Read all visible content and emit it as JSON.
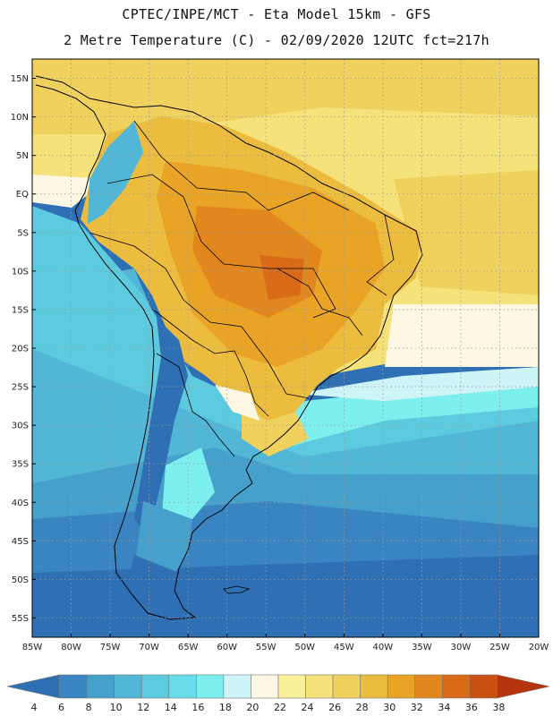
{
  "header": {
    "line1": "CPTEC/INPE/MCT -  Eta Model 15km - GFS",
    "line2": "2 Metre Temperature (C) - 02/09/2020 12UTC fct=217h"
  },
  "map": {
    "lat_labels": [
      "15N",
      "10N",
      "5N",
      "EQ",
      "5S",
      "10S",
      "15S",
      "20S",
      "25S",
      "30S",
      "35S",
      "40S",
      "45S",
      "50S",
      "55S"
    ],
    "lon_labels": [
      "85W",
      "80W",
      "75W",
      "70W",
      "65W",
      "60W",
      "55W",
      "50W",
      "45W",
      "40W",
      "35W",
      "30W",
      "25W",
      "20W"
    ],
    "lon_range": [
      -85,
      -20
    ],
    "lat_range": [
      -57.5,
      17.5
    ]
  },
  "colorbar": {
    "labels": [
      "4",
      "6",
      "8",
      "10",
      "12",
      "14",
      "16",
      "18",
      "20",
      "22",
      "24",
      "26",
      "28",
      "30",
      "32",
      "34",
      "36",
      "38"
    ],
    "colors": [
      "#2f6fb4",
      "#3a85c1",
      "#46a0cc",
      "#52b7d6",
      "#5dcbdf",
      "#6addea",
      "#7defee",
      "#cdf4f7",
      "#fdf7e4",
      "#fbf09a",
      "#f6e27a",
      "#f1d15d",
      "#ecbc3e",
      "#e9a325",
      "#e2871e",
      "#d86a18",
      "#c94f13",
      "#b3340d"
    ]
  }
}
